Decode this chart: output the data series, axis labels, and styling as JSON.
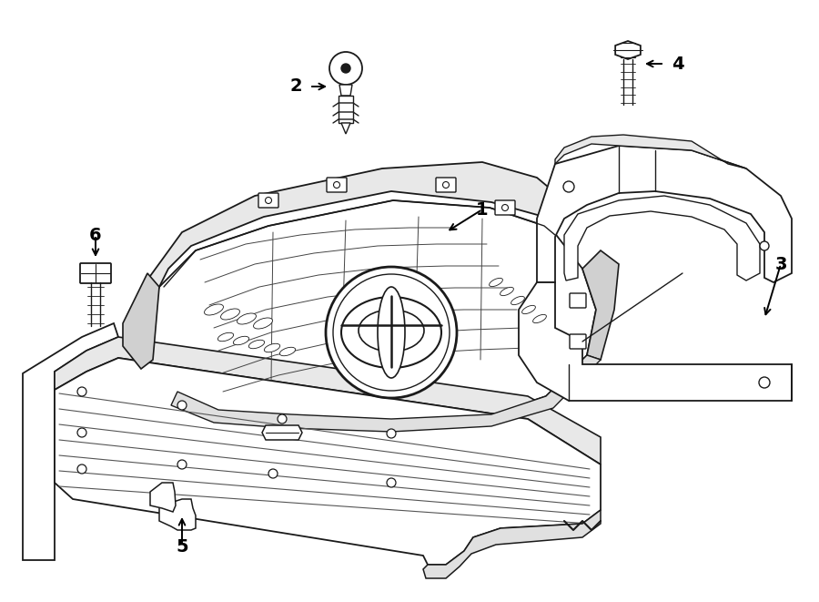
{
  "background_color": "#ffffff",
  "line_color": "#1a1a1a",
  "figure_width": 9.0,
  "figure_height": 6.61,
  "dpi": 100
}
